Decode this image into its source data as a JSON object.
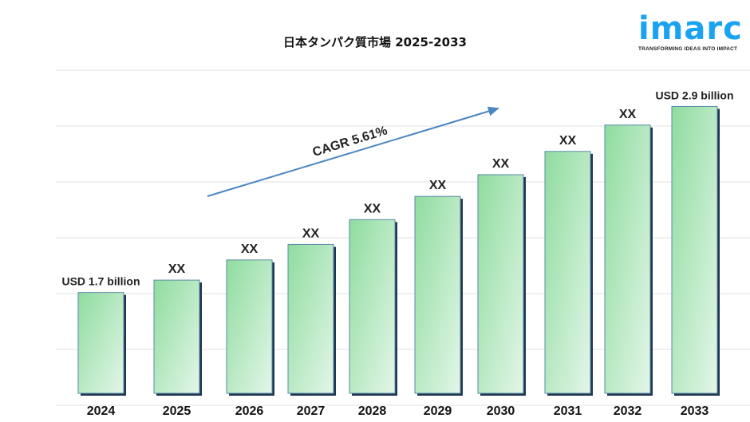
{
  "title": "日本タンパク質市場 2025-2033",
  "logo": {
    "word": "imarc",
    "tagline": "TRANSFORMING IDEAS INTO IMPACT",
    "color": "#1aa3f0"
  },
  "chart_data": {
    "type": "bar",
    "title": "日本タンパク質市場 2025-2033",
    "categories": [
      "2024",
      "2025",
      "2026",
      "2027",
      "2028",
      "2029",
      "2030",
      "2031",
      "2032",
      "2033"
    ],
    "values": [
      1.7,
      1.78,
      1.91,
      2.01,
      2.17,
      2.32,
      2.46,
      2.61,
      2.78,
      2.9
    ],
    "data_labels": [
      "USD 1.7 billion",
      "XX",
      "XX",
      "XX",
      "XX",
      "XX",
      "XX",
      "XX",
      "XX",
      "USD 2.9 billion"
    ],
    "unit": "USD billion",
    "ylim": [
      1.05,
      3.0
    ],
    "grid": true,
    "annotation": "CAGR 5.61%",
    "bar_color": "#8fdc9f",
    "arrow_color": "#4a86c0"
  }
}
